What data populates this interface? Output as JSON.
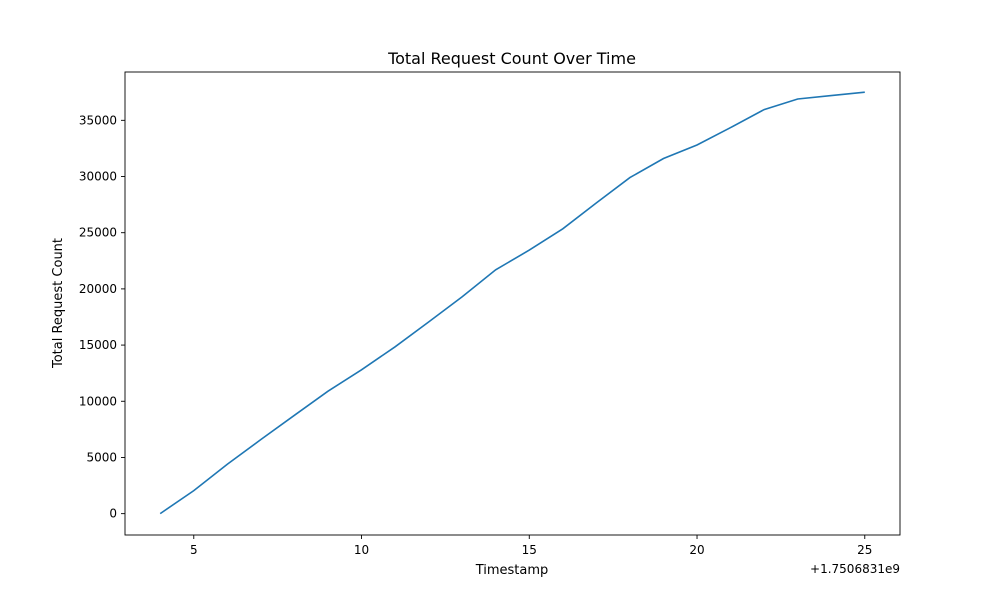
{
  "chart_data": {
    "type": "line",
    "title": "Total Request Count Over Time",
    "xlabel": "Timestamp",
    "ylabel": "Total Request Count",
    "x_offset_label": "+1.7506831e9",
    "x_ticks": [
      "5",
      "10",
      "15",
      "20",
      "25"
    ],
    "y_ticks": [
      "0",
      "5000",
      "10000",
      "15000",
      "20000",
      "25000",
      "30000",
      "35000"
    ],
    "xlim": [
      2.95,
      26.05
    ],
    "ylim": [
      -1900,
      39300
    ],
    "grid": false,
    "line_color": "#1f77b4",
    "x": [
      4,
      5,
      6,
      7,
      8,
      9,
      10,
      11,
      12,
      13,
      14,
      15,
      16,
      17,
      18,
      19,
      20,
      21,
      22,
      23,
      24,
      25
    ],
    "y": [
      0,
      2050,
      4400,
      6600,
      8750,
      10900,
      12800,
      14850,
      17050,
      19300,
      21700,
      23450,
      25350,
      27650,
      29900,
      31600,
      32800,
      34350,
      35950,
      36900,
      37200,
      37500
    ]
  }
}
